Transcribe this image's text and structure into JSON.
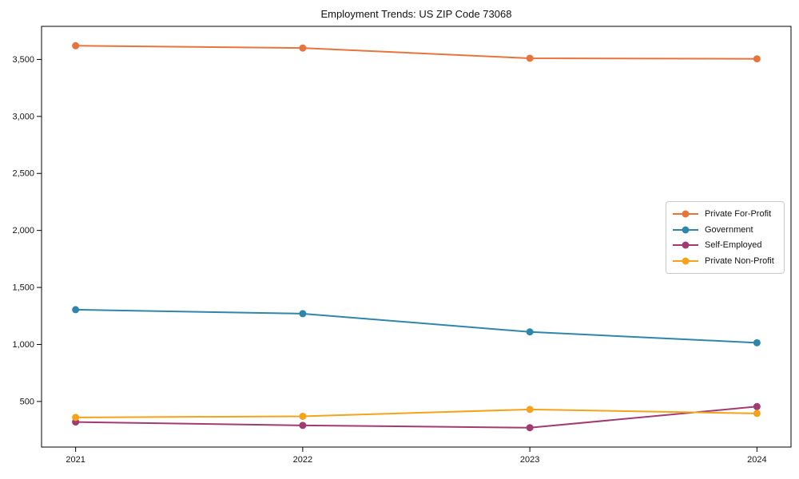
{
  "chart_data": {
    "type": "line",
    "title": "Employment Trends: US ZIP Code 73068",
    "x": [
      2021,
      2022,
      2023,
      2024
    ],
    "x_tick_labels": [
      "2021",
      "2022",
      "2023",
      "2024"
    ],
    "series": [
      {
        "name": "Private For-Profit",
        "color": "#E8743B",
        "values": [
          3620,
          3600,
          3510,
          3505
        ]
      },
      {
        "name": "Government",
        "color": "#2E86AB",
        "values": [
          1305,
          1270,
          1110,
          1015
        ]
      },
      {
        "name": "Self-Employed",
        "color": "#A23B72",
        "values": [
          320,
          290,
          270,
          455
        ]
      },
      {
        "name": "Private Non-Profit",
        "color": "#F5A31A",
        "values": [
          360,
          370,
          430,
          395
        ]
      }
    ],
    "yticks": [
      500,
      1000,
      1500,
      2000,
      2500,
      3000,
      3500
    ],
    "y_tick_labels": [
      "500",
      "1,000",
      "1,500",
      "2,000",
      "2,500",
      "3,000",
      "3,500"
    ],
    "ylim": [
      100,
      3790
    ],
    "xlim": [
      2020.85,
      2024.15
    ],
    "grid": false,
    "legend_position": "center-right",
    "axis_color": "#000000",
    "tick_label_color": "#141414",
    "background": "#ffffff",
    "xlabel": "",
    "ylabel": ""
  }
}
